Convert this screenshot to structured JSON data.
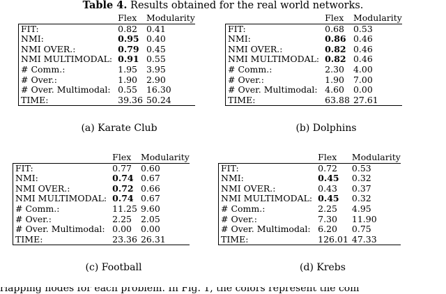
{
  "caption": {
    "label": "Table 4.",
    "text": "Results obtained for the real world networks."
  },
  "headers": [
    "Flex",
    "Modularity"
  ],
  "tables": [
    {
      "subcaption": "(a) Karate Club",
      "rows": [
        {
          "label": "FIT:",
          "flex": "0.82",
          "mod": "0.41",
          "bold_flex": false
        },
        {
          "label": "NMI:",
          "flex": "0.95",
          "mod": "0.40",
          "bold_flex": true
        },
        {
          "label": "NMI OVER.:",
          "flex": "0.79",
          "mod": "0.45",
          "bold_flex": true
        },
        {
          "label": "NMI MULTIMODAL:",
          "flex": "0.91",
          "mod": "0.55",
          "bold_flex": true
        },
        {
          "label": "# Comm.:",
          "flex": "1.95",
          "mod": "3.95",
          "bold_flex": false
        },
        {
          "label": "# Over.:",
          "flex": "1.90",
          "mod": "2.90",
          "bold_flex": false
        },
        {
          "label": "# Over. Multimodal:",
          "flex": "0.55",
          "mod": "16.30",
          "bold_flex": false
        },
        {
          "label": "TIME:",
          "flex": "39.36",
          "mod": "50.24",
          "bold_flex": false
        }
      ]
    },
    {
      "subcaption": "(b) Dolphins",
      "rows": [
        {
          "label": "FIT:",
          "flex": "0.68",
          "mod": "0.53",
          "bold_flex": false
        },
        {
          "label": "NMI:",
          "flex": "0.86",
          "mod": "0.46",
          "bold_flex": true
        },
        {
          "label": "NMI OVER.:",
          "flex": "0.82",
          "mod": "0.46",
          "bold_flex": true
        },
        {
          "label": "NMI MULTIMODAL:",
          "flex": "0.82",
          "mod": "0.46",
          "bold_flex": true
        },
        {
          "label": "# Comm.:",
          "flex": "2.30",
          "mod": "4.00",
          "bold_flex": false
        },
        {
          "label": "# Over.:",
          "flex": "1.90",
          "mod": "7.00",
          "bold_flex": false
        },
        {
          "label": "# Over. Multimodal:",
          "flex": "4.60",
          "mod": "0.00",
          "bold_flex": false
        },
        {
          "label": "TIME:",
          "flex": "63.88",
          "mod": "27.61",
          "bold_flex": false
        }
      ]
    },
    {
      "subcaption": "(c) Football",
      "rows": [
        {
          "label": "FIT:",
          "flex": "0.77",
          "mod": "0.60",
          "bold_flex": false
        },
        {
          "label": "NMI:",
          "flex": "0.74",
          "mod": "0.67",
          "bold_flex": true
        },
        {
          "label": "NMI OVER.:",
          "flex": "0.72",
          "mod": "0.66",
          "bold_flex": true
        },
        {
          "label": "NMI MULTIMODAL:",
          "flex": "0.74",
          "mod": "0.67",
          "bold_flex": true
        },
        {
          "label": "# Comm.:",
          "flex": "11.25",
          "mod": "9.60",
          "bold_flex": false
        },
        {
          "label": "# Over.:",
          "flex": "2.25",
          "mod": "2.05",
          "bold_flex": false
        },
        {
          "label": "# Over. Multimodal:",
          "flex": "0.00",
          "mod": "0.00",
          "bold_flex": false
        },
        {
          "label": "TIME:",
          "flex": "23.36",
          "mod": "26.31",
          "bold_flex": false
        }
      ]
    },
    {
      "subcaption": "(d) Krebs",
      "rows": [
        {
          "label": "FIT:",
          "flex": "0.72",
          "mod": "0.53",
          "bold_flex": false
        },
        {
          "label": "NMI:",
          "flex": "0.45",
          "mod": "0.32",
          "bold_flex": true
        },
        {
          "label": "NMI OVER.:",
          "flex": "0.43",
          "mod": "0.37",
          "bold_flex": false
        },
        {
          "label": "NMI MULTIMODAL:",
          "flex": "0.45",
          "mod": "0.32",
          "bold_flex": true
        },
        {
          "label": "# Comm.:",
          "flex": "2.25",
          "mod": "4.95",
          "bold_flex": false
        },
        {
          "label": "# Over.:",
          "flex": "7.30",
          "mod": "11.90",
          "bold_flex": false
        },
        {
          "label": "# Over. Multimodal:",
          "flex": "6.20",
          "mod": "0.75",
          "bold_flex": false
        },
        {
          "label": "TIME:",
          "flex": "126.01",
          "mod": "47.33",
          "bold_flex": false
        }
      ]
    }
  ],
  "footer": "rlapping nodes for each problem. In Fig. 1, the colors represent the com"
}
